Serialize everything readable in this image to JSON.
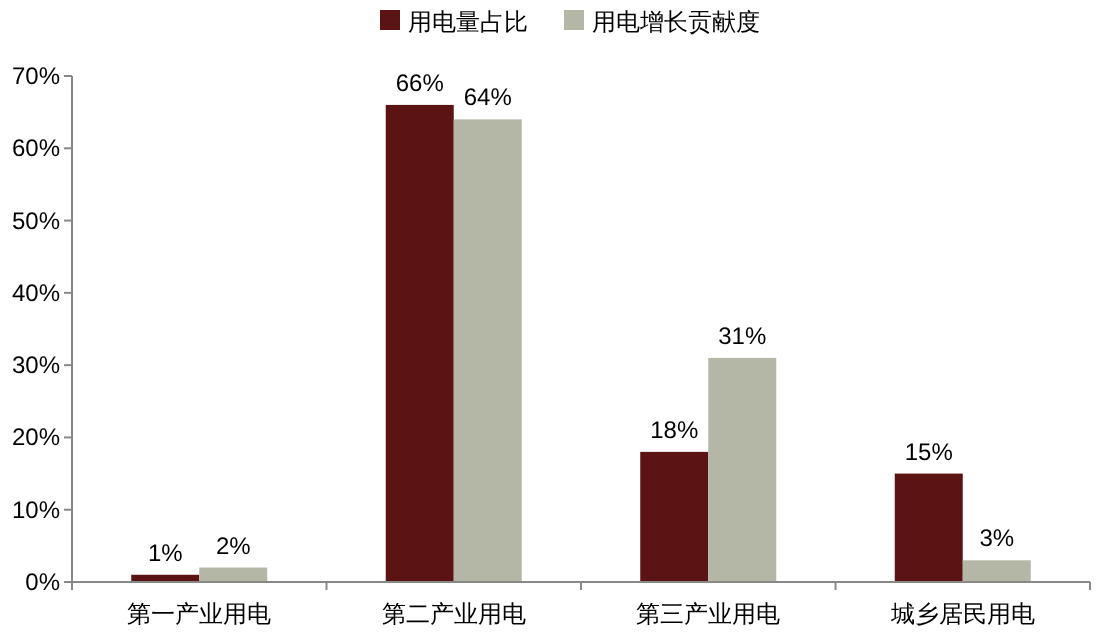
{
  "chart_data": {
    "type": "bar",
    "categories": [
      "第一产业用电",
      "第二产业用电",
      "第三产业用电",
      "城乡居民用电"
    ],
    "series": [
      {
        "name": "用电量占比",
        "color": "#5b1313",
        "values": [
          1,
          66,
          18,
          15
        ],
        "value_labels": [
          "1%",
          "66%",
          "18%",
          "15%"
        ]
      },
      {
        "name": "用电增长贡献度",
        "color": "#b4b7a5",
        "values": [
          2,
          64,
          31,
          3
        ],
        "value_labels": [
          "2%",
          "64%",
          "31%",
          "3%"
        ]
      }
    ],
    "ylim": [
      0,
      70
    ],
    "yticks": [
      {
        "value": 0,
        "label": "0%"
      },
      {
        "value": 10,
        "label": "10%"
      },
      {
        "value": 20,
        "label": "20%"
      },
      {
        "value": 30,
        "label": "30%"
      },
      {
        "value": 40,
        "label": "40%"
      },
      {
        "value": 50,
        "label": "50%"
      },
      {
        "value": 60,
        "label": "60%"
      },
      {
        "value": 70,
        "label": "70%"
      }
    ],
    "legend": "top",
    "grid": false
  }
}
